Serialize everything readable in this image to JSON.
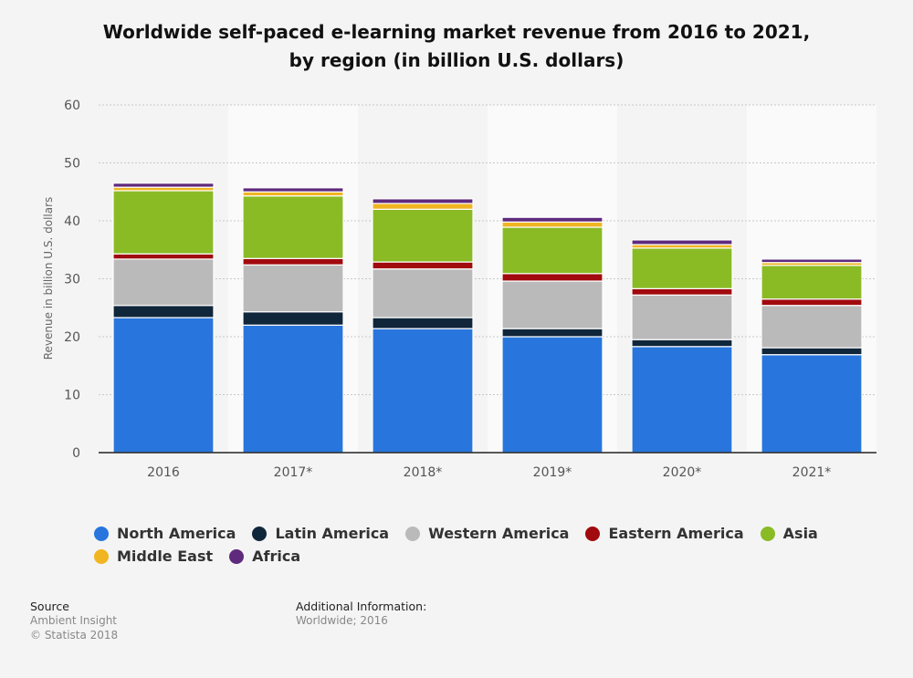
{
  "chart_data": {
    "type": "bar",
    "stacked": true,
    "title": "Worldwide self-paced e-learning market revenue from 2016 to 2021, by region (in billion U.S. dollars)",
    "title_lines": [
      "Worldwide self-paced e-learning market revenue from 2016 to 2021,",
      "by region (in billion U.S. dollars)"
    ],
    "xlabel": "",
    "ylabel": "Revenue in billion U.S. dollars",
    "ylim": [
      0,
      60
    ],
    "yticks": [
      "0",
      "10",
      "20",
      "30",
      "40",
      "50",
      "60"
    ],
    "grid": true,
    "legend_position": "bottom",
    "categories": [
      "2016",
      "2017*",
      "2018*",
      "2019*",
      "2020*",
      "2021*"
    ],
    "series": [
      {
        "name": "North America",
        "color": "#2876dd",
        "values": [
          23.3,
          22.0,
          21.4,
          20.0,
          18.3,
          16.9
        ]
      },
      {
        "name": "Latin America",
        "color": "#10263b",
        "values": [
          2.1,
          2.3,
          1.9,
          1.4,
          1.2,
          1.2
        ]
      },
      {
        "name": "Western America",
        "color": "#bababa",
        "values": [
          8.0,
          8.1,
          8.4,
          8.2,
          7.7,
          7.3
        ]
      },
      {
        "name": "Eastern America",
        "color": "#a10a0e",
        "values": [
          0.9,
          1.1,
          1.2,
          1.3,
          1.1,
          1.1
        ]
      },
      {
        "name": "Asia",
        "color": "#8abb25",
        "values": [
          10.9,
          10.8,
          9.1,
          8.0,
          7.0,
          5.8
        ]
      },
      {
        "name": "Middle East",
        "color": "#f0b521",
        "values": [
          0.6,
          0.7,
          1.0,
          0.9,
          0.6,
          0.5
        ]
      },
      {
        "name": "Africa",
        "color": "#5f2a7d",
        "values": [
          0.7,
          0.7,
          0.8,
          0.8,
          0.8,
          0.6
        ]
      }
    ]
  },
  "footer": {
    "source_label": "Source",
    "source_lines": [
      "Ambient Insight",
      "© Statista 2018"
    ],
    "additional_label": "Additional Information:",
    "additional_text": "Worldwide; 2016"
  }
}
